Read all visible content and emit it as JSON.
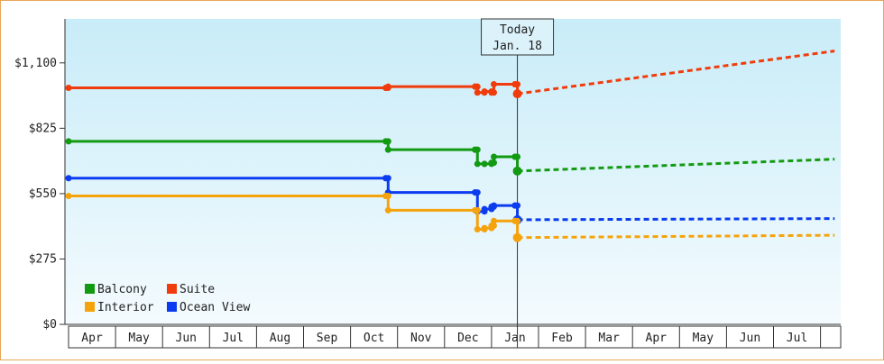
{
  "chart_data": {
    "type": "line",
    "style": "step",
    "title": "",
    "xlabel": "",
    "ylabel": "",
    "ylim": [
      0,
      1285
    ],
    "y_ticks": [
      "$0",
      "$275",
      "$550",
      "$825",
      "$1,100"
    ],
    "y_tick_values": [
      0,
      275,
      550,
      825,
      1100
    ],
    "x_tick_labels": [
      "Apr",
      "May",
      "Jun",
      "Jul",
      "Aug",
      "Sep",
      "Oct",
      "Nov",
      "Dec",
      "Jan",
      "Feb",
      "Mar",
      "Apr",
      "May",
      "Jun",
      "Jul"
    ],
    "x_range": [
      "Mar 31",
      "Aug 31"
    ],
    "today": {
      "label": "Today",
      "date": "Jan. 18",
      "month_index": 9.55
    },
    "legend_position": "bottom-left",
    "series": [
      {
        "name": "Suite",
        "color": "#f03c0c",
        "points": [
          [
            0,
            995
          ],
          [
            6.75,
            995
          ],
          [
            6.8,
            1000
          ],
          [
            8.65,
            1000
          ],
          [
            8.7,
            975
          ],
          [
            8.85,
            980
          ],
          [
            9.0,
            975
          ],
          [
            9.05,
            1010
          ],
          [
            9.5,
            1010
          ],
          [
            9.55,
            970
          ]
        ],
        "forecast": [
          [
            9.55,
            970
          ],
          [
            16.3,
            1150
          ]
        ]
      },
      {
        "name": "Balcony",
        "color": "#139a13",
        "points": [
          [
            0,
            770
          ],
          [
            6.75,
            770
          ],
          [
            6.8,
            735
          ],
          [
            8.65,
            735
          ],
          [
            8.7,
            675
          ],
          [
            8.85,
            675
          ],
          [
            9.0,
            680
          ],
          [
            9.05,
            705
          ],
          [
            9.5,
            705
          ],
          [
            9.55,
            645
          ]
        ],
        "forecast": [
          [
            9.55,
            645
          ],
          [
            16.3,
            695
          ]
        ]
      },
      {
        "name": "Ocean View",
        "color": "#0c3cf0",
        "points": [
          [
            0,
            615
          ],
          [
            6.75,
            615
          ],
          [
            6.8,
            555
          ],
          [
            8.65,
            555
          ],
          [
            8.7,
            475
          ],
          [
            8.85,
            485
          ],
          [
            9.0,
            495
          ],
          [
            9.05,
            500
          ],
          [
            9.5,
            500
          ],
          [
            9.55,
            440
          ]
        ],
        "forecast": [
          [
            9.55,
            440
          ],
          [
            16.3,
            445
          ]
        ]
      },
      {
        "name": "Interior",
        "color": "#f5a30c",
        "points": [
          [
            0,
            540
          ],
          [
            6.75,
            540
          ],
          [
            6.8,
            480
          ],
          [
            8.65,
            480
          ],
          [
            8.7,
            400
          ],
          [
            8.85,
            405
          ],
          [
            9.0,
            415
          ],
          [
            9.05,
            435
          ],
          [
            9.5,
            435
          ],
          [
            9.55,
            365
          ]
        ],
        "forecast": [
          [
            9.55,
            365
          ],
          [
            16.3,
            375
          ]
        ]
      }
    ],
    "legend": [
      {
        "name": "Balcony",
        "color": "#139a13"
      },
      {
        "name": "Suite",
        "color": "#f03c0c"
      },
      {
        "name": "Interior",
        "color": "#f5a30c"
      },
      {
        "name": "Ocean View",
        "color": "#0c3cf0"
      }
    ]
  }
}
